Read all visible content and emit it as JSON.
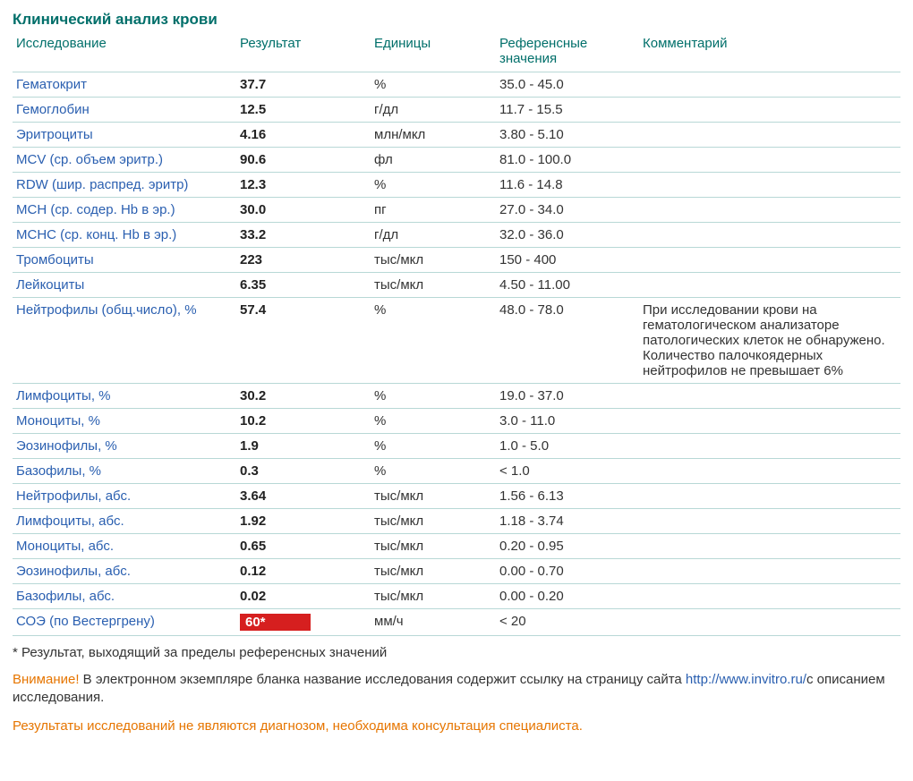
{
  "title": "Клинический анализ крови",
  "columns": {
    "test": "Исследование",
    "result": "Результат",
    "units": "Единицы",
    "reference": "Референсные значения",
    "comment": "Комментарий"
  },
  "rows": [
    {
      "test": "Гематокрит",
      "result": "37.7",
      "units": "%",
      "reference": "35.0 - 45.0",
      "comment": "",
      "out_of_range": false
    },
    {
      "test": "Гемоглобин",
      "result": "12.5",
      "units": "г/дл",
      "reference": "11.7 - 15.5",
      "comment": "",
      "out_of_range": false
    },
    {
      "test": "Эритроциты",
      "result": "4.16",
      "units": "млн/мкл",
      "reference": "3.80 - 5.10",
      "comment": "",
      "out_of_range": false
    },
    {
      "test": "MCV (ср. объем эритр.)",
      "result": "90.6",
      "units": "фл",
      "reference": "81.0 - 100.0",
      "comment": "",
      "out_of_range": false
    },
    {
      "test": "RDW (шир. распред. эритр)",
      "result": "12.3",
      "units": "%",
      "reference": "11.6 - 14.8",
      "comment": "",
      "out_of_range": false
    },
    {
      "test": "MCH (ср. содер. Hb в эр.)",
      "result": "30.0",
      "units": "пг",
      "reference": "27.0 - 34.0",
      "comment": "",
      "out_of_range": false
    },
    {
      "test": "MCHC (ср. конц. Hb в эр.)",
      "result": "33.2",
      "units": "г/дл",
      "reference": "32.0 - 36.0",
      "comment": "",
      "out_of_range": false
    },
    {
      "test": "Тромбоциты",
      "result": "223",
      "units": "тыс/мкл",
      "reference": "150 - 400",
      "comment": "",
      "out_of_range": false
    },
    {
      "test": "Лейкоциты",
      "result": "6.35",
      "units": "тыс/мкл",
      "reference": "4.50 - 11.00",
      "comment": "",
      "out_of_range": false
    },
    {
      "test": "Нейтрофилы (общ.число), %",
      "result": "57.4",
      "units": "%",
      "reference": "48.0 - 78.0",
      "comment": "При исследовании крови на гематологическом анализаторе патологических клеток не обнаружено. Количество палочкоядерных нейтрофилов не превышает 6%",
      "out_of_range": false
    },
    {
      "test": "Лимфоциты, %",
      "result": "30.2",
      "units": "%",
      "reference": "19.0 - 37.0",
      "comment": "",
      "out_of_range": false
    },
    {
      "test": "Моноциты, %",
      "result": "10.2",
      "units": "%",
      "reference": "3.0 - 11.0",
      "comment": "",
      "out_of_range": false
    },
    {
      "test": "Эозинофилы, %",
      "result": "1.9",
      "units": "%",
      "reference": "1.0 - 5.0",
      "comment": "",
      "out_of_range": false
    },
    {
      "test": "Базофилы, %",
      "result": "0.3",
      "units": "%",
      "reference": "< 1.0",
      "comment": "",
      "out_of_range": false
    },
    {
      "test": "Нейтрофилы, абс.",
      "result": "3.64",
      "units": "тыс/мкл",
      "reference": "1.56 - 6.13",
      "comment": "",
      "out_of_range": false
    },
    {
      "test": "Лимфоциты, абс.",
      "result": "1.92",
      "units": "тыс/мкл",
      "reference": "1.18 - 3.74",
      "comment": "",
      "out_of_range": false
    },
    {
      "test": "Моноциты, абс.",
      "result": "0.65",
      "units": "тыс/мкл",
      "reference": "0.20 - 0.95",
      "comment": "",
      "out_of_range": false
    },
    {
      "test": "Эозинофилы, абс.",
      "result": "0.12",
      "units": "тыс/мкл",
      "reference": "0.00 - 0.70",
      "comment": "",
      "out_of_range": false
    },
    {
      "test": "Базофилы, абс.",
      "result": "0.02",
      "units": "тыс/мкл",
      "reference": "0.00 - 0.20",
      "comment": "",
      "out_of_range": false
    },
    {
      "test": "СОЭ (по Вестергрену)",
      "result": "60*",
      "units": "мм/ч",
      "reference": "< 20",
      "comment": "",
      "out_of_range": true
    }
  ],
  "footnote": "* Результат, выходящий за пределы референсных значений",
  "notice_warn": "Внимание!",
  "notice_text_before_link": " В электронном экземпляре бланка название исследования содержит ссылку на страницу сайта ",
  "notice_link": "http://www.invitro.ru/",
  "notice_text_after_link": "с описанием исследования.",
  "disclaimer": "Результаты исследований не являются диагнозом, необходима консультация специалиста.",
  "colors": {
    "title": "#006f6a",
    "header_text": "#006f6a",
    "row_border": "#b8d8d6",
    "test_name": "#2a5fb0",
    "result_bold": "#222222",
    "body_text": "#333333",
    "out_of_range_bg": "#d61f1f",
    "out_of_range_fg": "#ffffff",
    "warn_text": "#e67500",
    "link_text": "#2a5fb0"
  }
}
